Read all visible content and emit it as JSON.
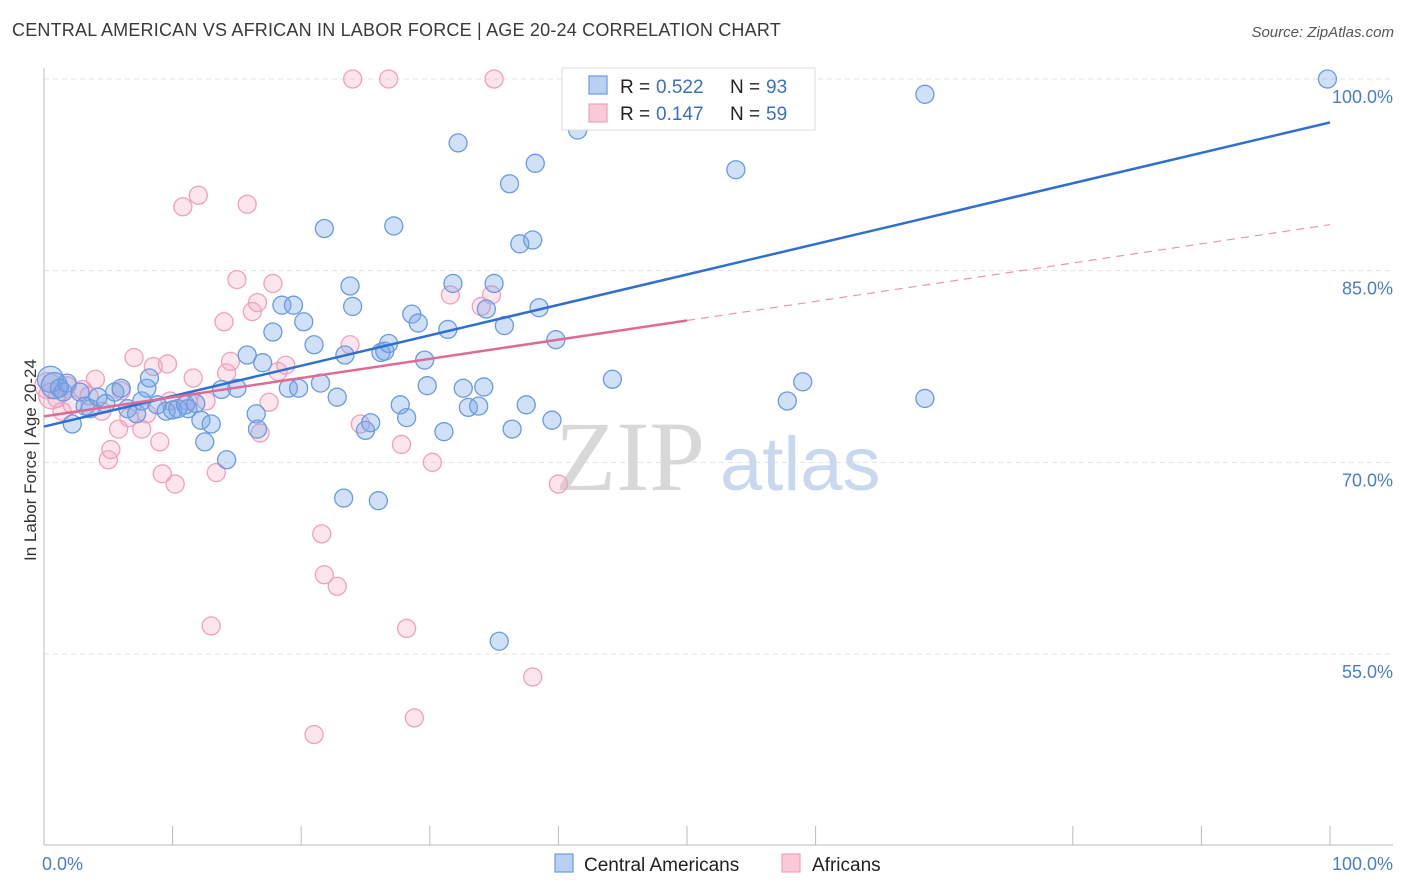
{
  "title": "CENTRAL AMERICAN VS AFRICAN IN LABOR FORCE | AGE 20-24 CORRELATION CHART",
  "source": "Source: ZipAtlas.com",
  "watermark": {
    "zip": "ZIP",
    "atlas": "atlas"
  },
  "chart_data": {
    "type": "scatter",
    "title": "CENTRAL AMERICAN VS AFRICAN IN LABOR FORCE | AGE 20-24 CORRELATION CHART",
    "xlabel": "",
    "ylabel": "In Labor Force | Age 20-24",
    "xlim": [
      0,
      1.05
    ],
    "ylim": [
      0.4,
      1.02
    ],
    "x_tick_labels": {
      "left": "0.0%",
      "right": "100.0%"
    },
    "y_ticks": [
      {
        "value": 1.0,
        "label": "100.0%"
      },
      {
        "value": 0.85,
        "label": "85.0%"
      },
      {
        "value": 0.7,
        "label": "70.0%"
      },
      {
        "value": 0.55,
        "label": "55.0%"
      }
    ],
    "grid": true,
    "legend_placement": "top-center",
    "colors": {
      "central": "#6a9be0",
      "africans": "#f0a0bc",
      "central_line": "#2f6fd0",
      "africans_line": "#e06a95"
    },
    "stats": [
      {
        "r_label": "R =",
        "r": "0.522",
        "n_label": "N =",
        "n": "93"
      },
      {
        "r_label": "R =",
        "r": "0.147",
        "n_label": "N =",
        "n": "59"
      }
    ],
    "series": [
      {
        "name": "Central Americans",
        "trend": {
          "x0": 0.0,
          "y0": 0.728,
          "x1": 1.0,
          "y1": 0.966,
          "dashed_from": null
        },
        "points": [
          [
            0.005,
            0.765
          ],
          [
            0.008,
            0.76
          ],
          [
            0.012,
            0.758
          ],
          [
            0.015,
            0.755
          ],
          [
            0.018,
            0.762
          ],
          [
            0.022,
            0.73
          ],
          [
            0.028,
            0.755
          ],
          [
            0.032,
            0.744
          ],
          [
            0.036,
            0.742
          ],
          [
            0.042,
            0.751
          ],
          [
            0.048,
            0.746
          ],
          [
            0.055,
            0.755
          ],
          [
            0.06,
            0.758
          ],
          [
            0.065,
            0.742
          ],
          [
            0.072,
            0.738
          ],
          [
            0.076,
            0.748
          ],
          [
            0.08,
            0.758
          ],
          [
            0.082,
            0.766
          ],
          [
            0.088,
            0.745
          ],
          [
            0.095,
            0.74
          ],
          [
            0.1,
            0.741
          ],
          [
            0.104,
            0.742
          ],
          [
            0.11,
            0.745
          ],
          [
            0.112,
            0.742
          ],
          [
            0.118,
            0.746
          ],
          [
            0.122,
            0.733
          ],
          [
            0.125,
            0.716
          ],
          [
            0.13,
            0.73
          ],
          [
            0.138,
            0.757
          ],
          [
            0.142,
            0.702
          ],
          [
            0.15,
            0.758
          ],
          [
            0.158,
            0.784
          ],
          [
            0.165,
            0.738
          ],
          [
            0.166,
            0.726
          ],
          [
            0.17,
            0.778
          ],
          [
            0.178,
            0.802
          ],
          [
            0.185,
            0.823
          ],
          [
            0.19,
            0.758
          ],
          [
            0.194,
            0.823
          ],
          [
            0.198,
            0.758
          ],
          [
            0.202,
            0.81
          ],
          [
            0.21,
            0.792
          ],
          [
            0.215,
            0.762
          ],
          [
            0.218,
            0.883
          ],
          [
            0.228,
            0.751
          ],
          [
            0.233,
            0.672
          ],
          [
            0.234,
            0.784
          ],
          [
            0.238,
            0.838
          ],
          [
            0.24,
            0.822
          ],
          [
            0.25,
            0.725
          ],
          [
            0.254,
            0.731
          ],
          [
            0.26,
            0.67
          ],
          [
            0.262,
            0.786
          ],
          [
            0.265,
            0.787
          ],
          [
            0.268,
            0.793
          ],
          [
            0.272,
            0.885
          ],
          [
            0.277,
            0.745
          ],
          [
            0.282,
            0.735
          ],
          [
            0.286,
            0.816
          ],
          [
            0.291,
            0.809
          ],
          [
            0.296,
            0.78
          ],
          [
            0.298,
            0.76
          ],
          [
            0.311,
            0.724
          ],
          [
            0.314,
            0.804
          ],
          [
            0.318,
            0.84
          ],
          [
            0.322,
            0.95
          ],
          [
            0.326,
            0.758
          ],
          [
            0.33,
            0.743
          ],
          [
            0.338,
            0.744
          ],
          [
            0.342,
            0.759
          ],
          [
            0.344,
            0.82
          ],
          [
            0.35,
            0.84
          ],
          [
            0.354,
            0.56
          ],
          [
            0.358,
            0.807
          ],
          [
            0.362,
            0.918
          ],
          [
            0.364,
            0.726
          ],
          [
            0.37,
            0.871
          ],
          [
            0.375,
            0.745
          ],
          [
            0.38,
            0.874
          ],
          [
            0.382,
            0.934
          ],
          [
            0.385,
            0.821
          ],
          [
            0.395,
            0.733
          ],
          [
            0.398,
            0.796
          ],
          [
            0.415,
            0.96
          ],
          [
            0.442,
            0.765
          ],
          [
            0.538,
            0.929
          ],
          [
            0.578,
            0.748
          ],
          [
            0.59,
            0.763
          ],
          [
            0.685,
            0.75
          ],
          [
            0.685,
            0.988
          ],
          [
            0.998,
            1.0
          ]
        ]
      },
      {
        "name": "Africans",
        "trend": {
          "x0": 0.0,
          "y0": 0.736,
          "x1": 1.0,
          "y1": 0.886,
          "dashed_from": 0.5
        },
        "points": [
          [
            0.003,
            0.76
          ],
          [
            0.006,
            0.752
          ],
          [
            0.01,
            0.75
          ],
          [
            0.014,
            0.74
          ],
          [
            0.018,
            0.76
          ],
          [
            0.022,
            0.745
          ],
          [
            0.03,
            0.757
          ],
          [
            0.035,
            0.752
          ],
          [
            0.04,
            0.765
          ],
          [
            0.045,
            0.74
          ],
          [
            0.05,
            0.702
          ],
          [
            0.052,
            0.71
          ],
          [
            0.058,
            0.726
          ],
          [
            0.06,
            0.756
          ],
          [
            0.066,
            0.735
          ],
          [
            0.07,
            0.782
          ],
          [
            0.076,
            0.726
          ],
          [
            0.08,
            0.738
          ],
          [
            0.085,
            0.775
          ],
          [
            0.09,
            0.716
          ],
          [
            0.092,
            0.691
          ],
          [
            0.096,
            0.777
          ],
          [
            0.098,
            0.748
          ],
          [
            0.102,
            0.683
          ],
          [
            0.108,
            0.9
          ],
          [
            0.112,
            0.748
          ],
          [
            0.116,
            0.766
          ],
          [
            0.12,
            0.909
          ],
          [
            0.126,
            0.748
          ],
          [
            0.13,
            0.572
          ],
          [
            0.134,
            0.692
          ],
          [
            0.14,
            0.81
          ],
          [
            0.142,
            0.77
          ],
          [
            0.145,
            0.779
          ],
          [
            0.15,
            0.843
          ],
          [
            0.158,
            0.902
          ],
          [
            0.162,
            0.818
          ],
          [
            0.166,
            0.825
          ],
          [
            0.168,
            0.723
          ],
          [
            0.175,
            0.747
          ],
          [
            0.178,
            0.84
          ],
          [
            0.182,
            0.771
          ],
          [
            0.188,
            0.776
          ],
          [
            0.21,
            0.487
          ],
          [
            0.216,
            0.644
          ],
          [
            0.218,
            0.612
          ],
          [
            0.228,
            0.603
          ],
          [
            0.238,
            0.792
          ],
          [
            0.24,
            1.0
          ],
          [
            0.246,
            0.73
          ],
          [
            0.268,
            1.0
          ],
          [
            0.278,
            0.714
          ],
          [
            0.282,
            0.57
          ],
          [
            0.288,
            0.5
          ],
          [
            0.302,
            0.7
          ],
          [
            0.316,
            0.831
          ],
          [
            0.34,
            0.822
          ],
          [
            0.348,
            0.831
          ],
          [
            0.35,
            1.0
          ],
          [
            0.38,
            0.532
          ],
          [
            0.4,
            0.683
          ]
        ]
      }
    ]
  },
  "bottom_legend": [
    {
      "label": "Central Americans"
    },
    {
      "label": "Africans"
    }
  ]
}
